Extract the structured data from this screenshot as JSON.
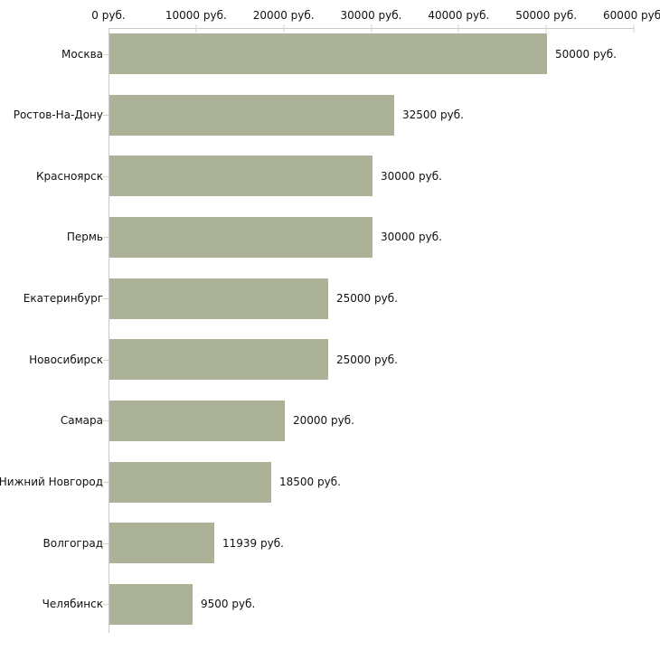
{
  "chart_data": {
    "type": "bar",
    "orientation": "horizontal",
    "title": "",
    "xlabel": "",
    "ylabel": "",
    "categories": [
      "Москва",
      "Ростов-На-Дону",
      "Красноярск",
      "Пермь",
      "Екатеринбург",
      "Новосибирск",
      "Самара",
      "Нижний Новгород",
      "Волгоград",
      "Челябинск"
    ],
    "values": [
      50000,
      32500,
      30000,
      30000,
      25000,
      25000,
      20000,
      18500,
      11939,
      9500
    ],
    "value_labels": [
      "50000 руб.",
      "32500 руб.",
      "30000 руб.",
      "30000 руб.",
      "25000 руб.",
      "25000 руб.",
      "20000 руб.",
      "18500 руб.",
      "11939 руб.",
      "9500 руб."
    ],
    "x_ticks": [
      0,
      10000,
      20000,
      30000,
      40000,
      50000,
      60000
    ],
    "x_tick_labels": [
      "0 руб.",
      "10000 руб.",
      "20000 руб.",
      "30000 руб.",
      "40000 руб.",
      "50000 руб.",
      "60000 руб."
    ],
    "xlim": [
      0,
      60000
    ],
    "grid": false,
    "legend": false,
    "axis_position": "top-left",
    "colors": {
      "bar_fill": "#abb298",
      "axis_line": "#c9c9c9",
      "tick_mark": "#d4d4bc",
      "text": "#111111",
      "background": "#ffffff"
    }
  }
}
